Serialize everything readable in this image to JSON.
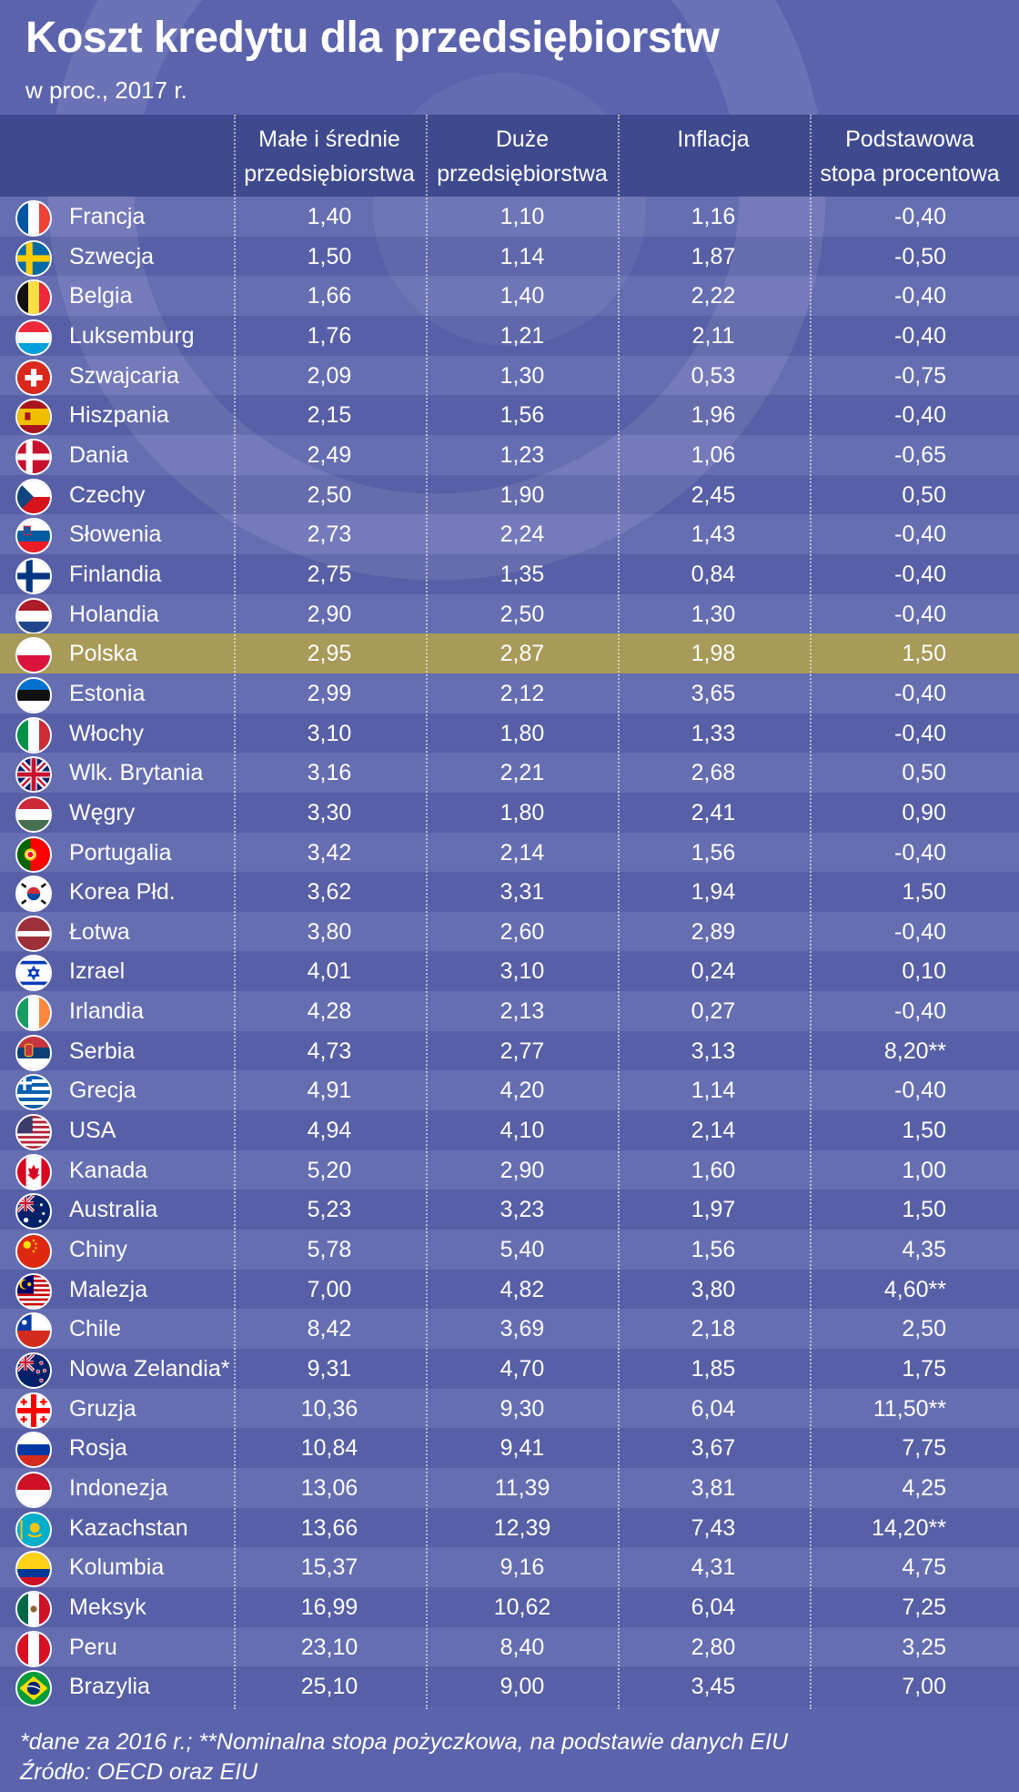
{
  "title": "Koszt kredytu dla przedsiębiorstw",
  "subtitle": "w proc., 2017 r.",
  "colors": {
    "background": "#5b63ad",
    "header": "#3f4a8e",
    "highlight": "#a89a58"
  },
  "headers": [
    {
      "line1": "Małe i średnie",
      "line2": "przedsiębiorstwa"
    },
    {
      "line1": "Duże",
      "line2": "przedsiębiorstwa"
    },
    {
      "line1": "Inflacja",
      "line2": ""
    },
    {
      "line1": "Podstawowa",
      "line2": "stopa procentowa"
    }
  ],
  "chart_data": {
    "type": "table",
    "title": "Koszt kredytu dla przedsiębiorstw",
    "subtitle": "w proc., 2017 r.",
    "columns": [
      "Małe i średnie przedsiębiorstwa",
      "Duże przedsiębiorstwa",
      "Inflacja",
      "Podstawowa stopa procentowa"
    ],
    "rows": [
      {
        "flag": "france-flag",
        "country": "Francja",
        "values": [
          "1,40",
          "1,10",
          "1,16",
          "-0,40"
        ]
      },
      {
        "flag": "sweden-flag",
        "country": "Szwecja",
        "values": [
          "1,50",
          "1,14",
          "1,87",
          "-0,50"
        ]
      },
      {
        "flag": "belgium-flag",
        "country": "Belgia",
        "values": [
          "1,66",
          "1,40",
          "2,22",
          "-0,40"
        ]
      },
      {
        "flag": "luxembourg-flag",
        "country": "Luksemburg",
        "values": [
          "1,76",
          "1,21",
          "2,11",
          "-0,40"
        ]
      },
      {
        "flag": "switzerland-flag",
        "country": "Szwajcaria",
        "values": [
          "2,09",
          "1,30",
          "0,53",
          "-0,75"
        ]
      },
      {
        "flag": "spain-flag",
        "country": "Hiszpania",
        "values": [
          "2,15",
          "1,56",
          "1,96",
          "-0,40"
        ]
      },
      {
        "flag": "denmark-flag",
        "country": "Dania",
        "values": [
          "2,49",
          "1,23",
          "1,06",
          "-0,65"
        ]
      },
      {
        "flag": "czechia-flag",
        "country": "Czechy",
        "values": [
          "2,50",
          "1,90",
          "2,45",
          "0,50"
        ]
      },
      {
        "flag": "slovenia-flag",
        "country": "Słowenia",
        "values": [
          "2,73",
          "2,24",
          "1,43",
          "-0,40"
        ]
      },
      {
        "flag": "finland-flag",
        "country": "Finlandia",
        "values": [
          "2,75",
          "1,35",
          "0,84",
          "-0,40"
        ]
      },
      {
        "flag": "netherlands-flag",
        "country": "Holandia",
        "values": [
          "2,90",
          "2,50",
          "1,30",
          "-0,40"
        ]
      },
      {
        "flag": "poland-flag",
        "country": "Polska",
        "values": [
          "2,95",
          "2,87",
          "1,98",
          "1,50"
        ],
        "highlight": true
      },
      {
        "flag": "estonia-flag",
        "country": "Estonia",
        "values": [
          "2,99",
          "2,12",
          "3,65",
          "-0,40"
        ]
      },
      {
        "flag": "italy-flag",
        "country": "Włochy",
        "values": [
          "3,10",
          "1,80",
          "1,33",
          "-0,40"
        ]
      },
      {
        "flag": "uk-flag",
        "country": "Wlk. Brytania",
        "values": [
          "3,16",
          "2,21",
          "2,68",
          "0,50"
        ]
      },
      {
        "flag": "hungary-flag",
        "country": "Węgry",
        "values": [
          "3,30",
          "1,80",
          "2,41",
          "0,90"
        ]
      },
      {
        "flag": "portugal-flag",
        "country": "Portugalia",
        "values": [
          "3,42",
          "2,14",
          "1,56",
          "-0,40"
        ]
      },
      {
        "flag": "south-korea-flag",
        "country": "Korea Płd.",
        "values": [
          "3,62",
          "3,31",
          "1,94",
          "1,50"
        ]
      },
      {
        "flag": "latvia-flag",
        "country": "Łotwa",
        "values": [
          "3,80",
          "2,60",
          "2,89",
          "-0,40"
        ]
      },
      {
        "flag": "israel-flag",
        "country": "Izrael",
        "values": [
          "4,01",
          "3,10",
          "0,24",
          "0,10"
        ]
      },
      {
        "flag": "ireland-flag",
        "country": "Irlandia",
        "values": [
          "4,28",
          "2,13",
          "0,27",
          "-0,40"
        ]
      },
      {
        "flag": "serbia-flag",
        "country": "Serbia",
        "values": [
          "4,73",
          "2,77",
          "3,13",
          "8,20**"
        ]
      },
      {
        "flag": "greece-flag",
        "country": "Grecja",
        "values": [
          "4,91",
          "4,20",
          "1,14",
          "-0,40"
        ]
      },
      {
        "flag": "usa-flag",
        "country": "USA",
        "values": [
          "4,94",
          "4,10",
          "2,14",
          "1,50"
        ]
      },
      {
        "flag": "canada-flag",
        "country": "Kanada",
        "values": [
          "5,20",
          "2,90",
          "1,60",
          "1,00"
        ]
      },
      {
        "flag": "australia-flag",
        "country": "Australia",
        "values": [
          "5,23",
          "3,23",
          "1,97",
          "1,50"
        ]
      },
      {
        "flag": "china-flag",
        "country": "Chiny",
        "values": [
          "5,78",
          "5,40",
          "1,56",
          "4,35"
        ]
      },
      {
        "flag": "malaysia-flag",
        "country": "Malezja",
        "values": [
          "7,00",
          "4,82",
          "3,80",
          "4,60**"
        ]
      },
      {
        "flag": "chile-flag",
        "country": "Chile",
        "values": [
          "8,42",
          "3,69",
          "2,18",
          "2,50"
        ]
      },
      {
        "flag": "new-zealand-flag",
        "country": "Nowa Zelandia*",
        "values": [
          "9,31",
          "4,70",
          "1,85",
          "1,75"
        ]
      },
      {
        "flag": "georgia-flag",
        "country": "Gruzja",
        "values": [
          "10,36",
          "9,30",
          "6,04",
          "11,50**"
        ]
      },
      {
        "flag": "russia-flag",
        "country": "Rosja",
        "values": [
          "10,84",
          "9,41",
          "3,67",
          "7,75"
        ]
      },
      {
        "flag": "indonesia-flag",
        "country": "Indonezja",
        "values": [
          "13,06",
          "11,39",
          "3,81",
          "4,25"
        ]
      },
      {
        "flag": "kazakhstan-flag",
        "country": "Kazachstan",
        "values": [
          "13,66",
          "12,39",
          "7,43",
          "14,20**"
        ]
      },
      {
        "flag": "colombia-flag",
        "country": "Kolumbia",
        "values": [
          "15,37",
          "9,16",
          "4,31",
          "4,75"
        ]
      },
      {
        "flag": "mexico-flag",
        "country": "Meksyk",
        "values": [
          "16,99",
          "10,62",
          "6,04",
          "7,25"
        ]
      },
      {
        "flag": "peru-flag",
        "country": "Peru",
        "values": [
          "23,10",
          "8,40",
          "2,80",
          "3,25"
        ]
      },
      {
        "flag": "brazil-flag",
        "country": "Brazylia",
        "values": [
          "25,10",
          "9,00",
          "3,45",
          "7,00"
        ]
      }
    ]
  },
  "footer": {
    "note": "*dane za 2016 r.; **Nominalna stopa pożyczkowa, na podstawie danych EIU",
    "source": "Źródło: OECD oraz EIU"
  }
}
